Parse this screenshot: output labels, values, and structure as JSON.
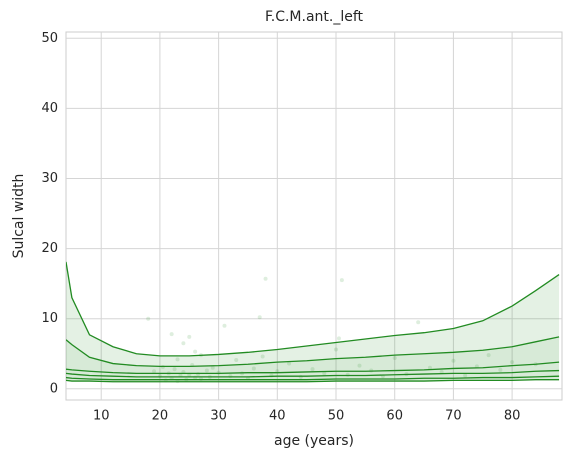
{
  "chart_data": {
    "type": "line",
    "title": "F.C.M.ant._left",
    "xlabel": "age (years)",
    "ylabel": "Sulcal width",
    "xlim": [
      4,
      88.5
    ],
    "ylim": [
      -1.6,
      50.9
    ],
    "xticks": [
      10,
      20,
      30,
      40,
      50,
      60,
      70,
      80
    ],
    "yticks": [
      0,
      10,
      20,
      30,
      40,
      50
    ],
    "grid": true,
    "color": "#228b22",
    "fill_between": [
      [
        0,
        1
      ],
      [
        1,
        5
      ]
    ],
    "x": [
      4,
      5,
      8,
      12,
      16,
      20,
      25,
      30,
      35,
      40,
      45,
      50,
      55,
      60,
      65,
      70,
      75,
      80,
      84,
      88
    ],
    "series": [
      {
        "values": [
          18.1,
          13,
          7.7,
          6,
          5,
          4.7,
          4.7,
          4.9,
          5.2,
          5.6,
          6.1,
          6.6,
          7.1,
          7.6,
          8.0,
          8.6,
          9.7,
          11.8,
          14,
          16.3
        ]
      },
      {
        "values": [
          7,
          6.3,
          4.5,
          3.6,
          3.3,
          3.2,
          3.2,
          3.3,
          3.5,
          3.8,
          4.0,
          4.3,
          4.5,
          4.8,
          5.0,
          5.2,
          5.5,
          6.0,
          6.7,
          7.4
        ]
      },
      {
        "values": [
          2.8,
          2.7,
          2.5,
          2.3,
          2.2,
          2.2,
          2.2,
          2.2,
          2.3,
          2.3,
          2.4,
          2.5,
          2.5,
          2.6,
          2.7,
          2.9,
          3.0,
          3.3,
          3.5,
          3.8
        ]
      },
      {
        "values": [
          2.2,
          2.1,
          1.9,
          1.8,
          1.7,
          1.7,
          1.7,
          1.7,
          1.7,
          1.8,
          1.8,
          1.9,
          1.9,
          2.0,
          2.1,
          2.2,
          2.2,
          2.3,
          2.5,
          2.6
        ]
      },
      {
        "values": [
          1.6,
          1.5,
          1.4,
          1.3,
          1.3,
          1.3,
          1.3,
          1.3,
          1.3,
          1.3,
          1.3,
          1.4,
          1.4,
          1.4,
          1.5,
          1.5,
          1.6,
          1.6,
          1.7,
          1.8
        ]
      },
      {
        "values": [
          1.2,
          1.1,
          1.1,
          1.0,
          1.0,
          1.0,
          1.0,
          1.0,
          1.0,
          1.0,
          1.0,
          1.1,
          1.1,
          1.1,
          1.1,
          1.2,
          1.2,
          1.2,
          1.3,
          1.3
        ]
      }
    ],
    "scatter": {
      "x": [
        18,
        19,
        20,
        20.5,
        21,
        21.5,
        22,
        22,
        22.5,
        23,
        23,
        23.5,
        24,
        24,
        24.5,
        25,
        25,
        25.5,
        26,
        26,
        26.5,
        27,
        27,
        28,
        28.5,
        29,
        30,
        31,
        32,
        33,
        34,
        35,
        36,
        37,
        37.5,
        38,
        39,
        40,
        42,
        44,
        46,
        48,
        50,
        50.5,
        51,
        52,
        54,
        56,
        58,
        60,
        62,
        64,
        66,
        68,
        70,
        72,
        74,
        76,
        78,
        80,
        84
      ],
      "y": [
        10,
        2.5,
        1.8,
        3.1,
        1.2,
        2.2,
        7.8,
        1.5,
        2.8,
        1.1,
        4.2,
        1.9,
        2.4,
        6.5,
        1.3,
        7.4,
        2.0,
        3.4,
        1.6,
        5.3,
        2.1,
        1.4,
        4.8,
        2.6,
        1.7,
        3.0,
        2.3,
        9.0,
        1.8,
        4.1,
        2.2,
        1.5,
        2.9,
        10.2,
        4.6,
        15.7,
        1.9,
        2.5,
        3.6,
        1.7,
        2.8,
        2.2,
        5.6,
        7.2,
        15.5,
        2.0,
        3.3,
        2.6,
        1.8,
        4.4,
        2.1,
        9.5,
        3.0,
        2.4,
        4.0,
        1.9,
        3.2,
        4.8,
        2.7,
        3.8,
        3.5
      ]
    }
  }
}
